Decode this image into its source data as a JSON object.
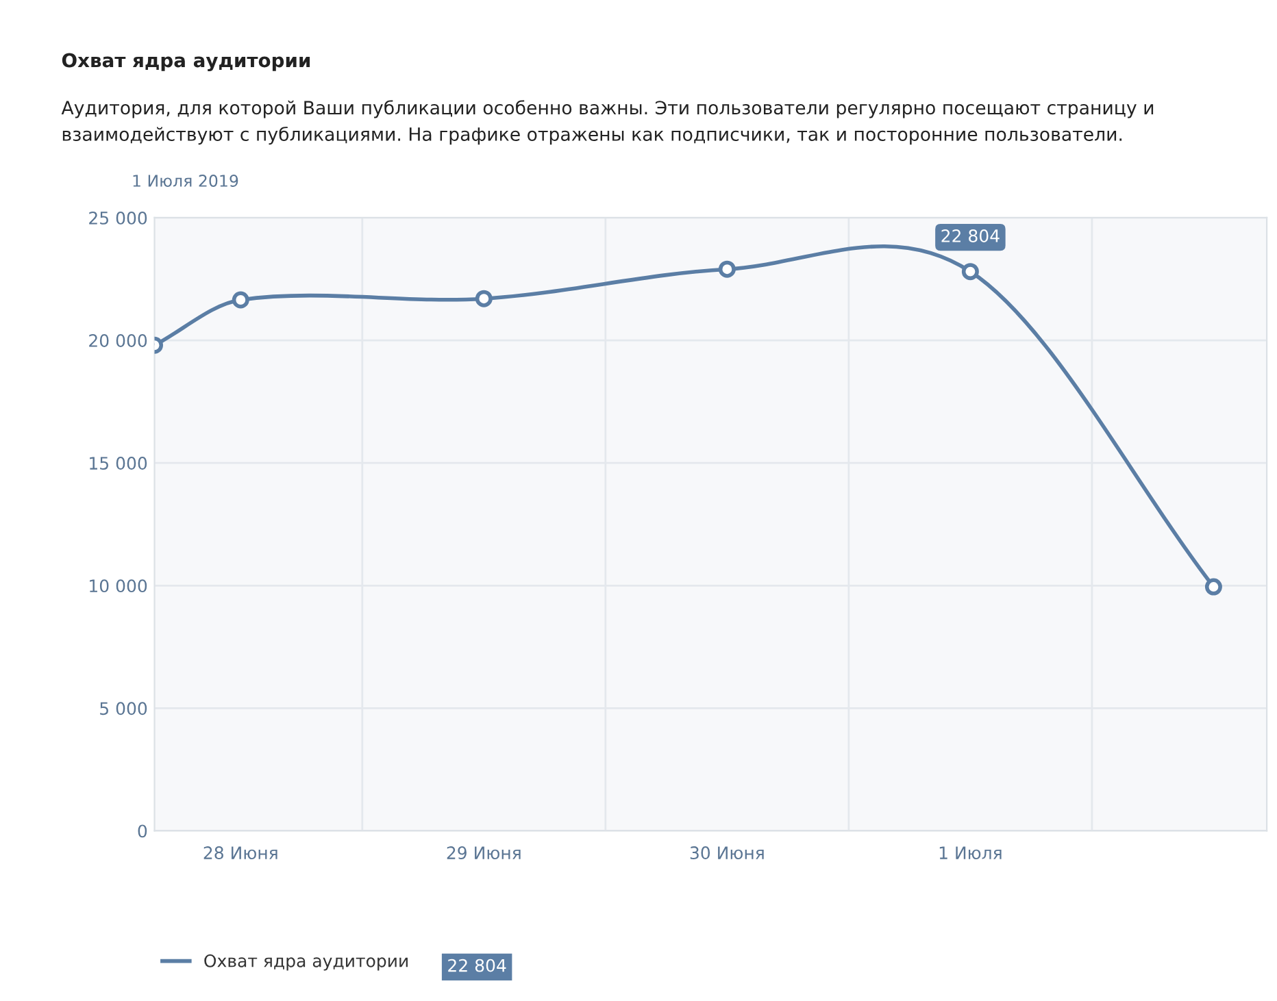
{
  "chart_data": {
    "type": "line",
    "title": "Охват ядра аудитории",
    "subtitle": "Аудитория, для которой Ваши публикации особенно важны. Эти пользователи регулярно посещают страницу и взаимодействуют с публикациями. На графике отражены как подписчики, так и посторонние пользователи.",
    "annotations": [
      "1 Июля 2019",
      {
        "text": "22 804",
        "x": "2019-07-01",
        "y": 22804
      },
      "22 804"
    ],
    "x": [
      "2019-06-27T15:30",
      "2019-06-28",
      "2019-06-29",
      "2019-06-30",
      "2019-07-01",
      "2019-07-02"
    ],
    "series": [
      {
        "name": "Охват ядра аудитории",
        "color": "#5b7ea5",
        "values": [
          19800,
          21650,
          21700,
          22900,
          22804,
          9950
        ]
      }
    ],
    "xlim": [
      "2019-06-27T15:30",
      "2019-07-02T05:15"
    ],
    "xticks": [
      {
        "value": "2019-06-28",
        "label": "28 Июня"
      },
      {
        "value": "2019-06-28T12:00",
        "label": null
      },
      {
        "value": "2019-06-29",
        "label": "29 Июня"
      },
      {
        "value": "2019-06-29T12:00",
        "label": null
      },
      {
        "value": "2019-06-30",
        "label": "30 Июня"
      },
      {
        "value": "2019-06-30T12:00",
        "label": null
      },
      {
        "value": "2019-07-01",
        "label": "1 Июля"
      },
      {
        "value": "2019-07-01T12:00",
        "label": null
      }
    ],
    "ylim": [
      0,
      25000
    ],
    "yticks": [
      {
        "value": 0,
        "label": "0"
      },
      {
        "value": 5000,
        "label": "5 000"
      },
      {
        "value": 10000,
        "label": "10 000"
      },
      {
        "value": 15000,
        "label": "15 000"
      },
      {
        "value": 20000,
        "label": "20 000"
      },
      {
        "value": 25000,
        "label": "25 000"
      }
    ],
    "grid": true,
    "marker": "circle",
    "line_style": "solid",
    "legend": "bottom left"
  }
}
